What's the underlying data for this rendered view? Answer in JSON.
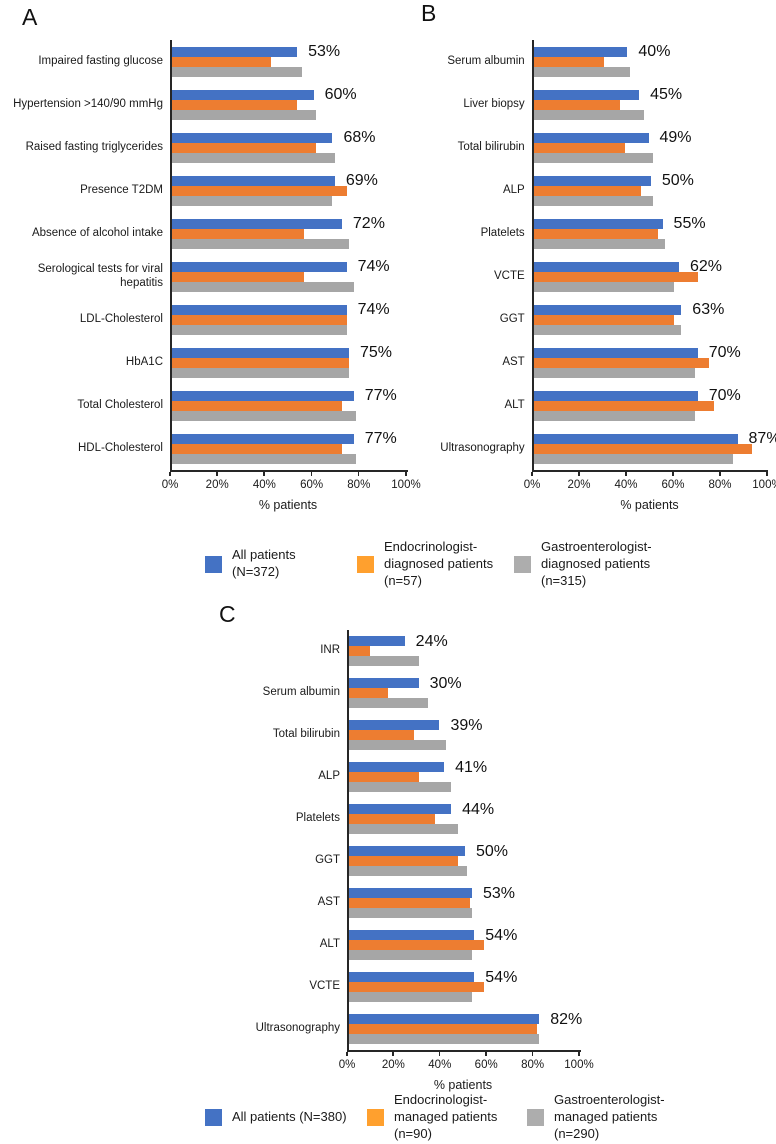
{
  "figure": {
    "background": "#ffffff"
  },
  "colors": {
    "blue": "#4472C4",
    "orange": "#ED7D31",
    "gray": "#A6A6A6",
    "legend_orange": "#FFA02E",
    "legend_gray": "#ADADAD",
    "axis": "#262626"
  },
  "chart_data": [
    {
      "letter": "A",
      "type": "bar",
      "orientation": "horizontal",
      "xlabel": "% patients",
      "ticks": [
        "0%",
        "20%",
        "40%",
        "60%",
        "80%",
        "100%"
      ],
      "tick_values": [
        0,
        20,
        40,
        60,
        80,
        100
      ],
      "xlim": [
        0,
        100
      ],
      "categories": [
        "Impaired fasting glucose",
        "Hypertension >140/90 mmHg",
        "Raised fasting triglycerides",
        "Presence T2DM",
        "Absence of alcohol intake",
        "Serological tests for viral hepatitis",
        "LDL-Cholesterol",
        "HbA1C",
        "Total Cholesterol",
        "HDL-Cholesterol"
      ],
      "value_labels": [
        "53%",
        "60%",
        "68%",
        "69%",
        "72%",
        "74%",
        "74%",
        "75%",
        "77%",
        "77%"
      ],
      "series": [
        {
          "name": "All patients (N=372)",
          "color": "#4472C4",
          "values": [
            53,
            60,
            68,
            69,
            72,
            74,
            74,
            75,
            77,
            77
          ]
        },
        {
          "name": "Endocrinologist-diagnosed patients (n=57)",
          "color": "#ED7D31",
          "values": [
            42,
            53,
            61,
            74,
            56,
            56,
            74,
            75,
            72,
            72
          ]
        },
        {
          "name": "Gastroenterologist-diagnosed patients (n=315)",
          "color": "#A6A6A6",
          "values": [
            55,
            61,
            69,
            68,
            75,
            77,
            74,
            75,
            78,
            78
          ]
        }
      ]
    },
    {
      "letter": "B",
      "type": "bar",
      "orientation": "horizontal",
      "xlabel": "% patients",
      "ticks": [
        "0%",
        "20%",
        "40%",
        "60%",
        "80%",
        "100%"
      ],
      "tick_values": [
        0,
        20,
        40,
        60,
        80,
        100
      ],
      "xlim": [
        0,
        100
      ],
      "categories": [
        "Serum albumin",
        "Liver biopsy",
        "Total bilirubin",
        "ALP",
        "Platelets",
        "VCTE",
        "GGT",
        "AST",
        "ALT",
        "Ultrasonography"
      ],
      "value_labels": [
        "40%",
        "45%",
        "49%",
        "50%",
        "55%",
        "62%",
        "63%",
        "70%",
        "70%",
        "87%"
      ],
      "series": [
        {
          "name": "All patients (N=372)",
          "color": "#4472C4",
          "values": [
            40,
            45,
            49,
            50,
            55,
            62,
            63,
            70,
            70,
            87
          ]
        },
        {
          "name": "Endocrinologist-diagnosed patients (n=57)",
          "color": "#ED7D31",
          "values": [
            30,
            37,
            39,
            46,
            53,
            70,
            60,
            75,
            77,
            93
          ]
        },
        {
          "name": "Gastroenterologist-diagnosed patients (n=315)",
          "color": "#A6A6A6",
          "values": [
            41,
            47,
            51,
            51,
            56,
            60,
            63,
            69,
            69,
            85
          ]
        }
      ]
    },
    {
      "letter": "C",
      "type": "bar",
      "orientation": "horizontal",
      "xlabel": "% patients",
      "ticks": [
        "0%",
        "20%",
        "40%",
        "60%",
        "80%",
        "100%"
      ],
      "tick_values": [
        0,
        20,
        40,
        60,
        80,
        100
      ],
      "xlim": [
        0,
        100
      ],
      "categories": [
        "INR",
        "Serum albumin",
        "Total bilirubin",
        "ALP",
        "Platelets",
        "GGT",
        "AST",
        "ALT",
        "VCTE",
        "Ultrasonography"
      ],
      "value_labels": [
        "24%",
        "30%",
        "39%",
        "41%",
        "44%",
        "50%",
        "53%",
        "54%",
        "54%",
        "82%"
      ],
      "series": [
        {
          "name": "All patients (N=380)",
          "color": "#4472C4",
          "values": [
            24,
            30,
            39,
            41,
            44,
            50,
            53,
            54,
            54,
            82
          ]
        },
        {
          "name": "Endocrinologist-managed patients (n=90)",
          "color": "#ED7D31",
          "values": [
            9,
            17,
            28,
            30,
            37,
            47,
            52,
            58,
            58,
            81
          ]
        },
        {
          "name": "Gastroenterologist-managed patients (n=290)",
          "color": "#A6A6A6",
          "values": [
            30,
            34,
            42,
            44,
            47,
            51,
            53,
            53,
            53,
            82
          ]
        }
      ]
    }
  ],
  "legends": [
    {
      "items": [
        {
          "label": "All patients (N=372)",
          "color": "#4472C4"
        },
        {
          "label": "Endocrinologist-\ndiagnosed patients\n(n=57)",
          "color": "#FFA02E"
        },
        {
          "label": "Gastroenterologist-\ndiagnosed patients\n(n=315)",
          "color": "#ADADAD"
        }
      ]
    },
    {
      "items": [
        {
          "label": "All patients (N=380)",
          "color": "#4472C4"
        },
        {
          "label": "Endocrinologist-\nmanaged patients\n(n=90)",
          "color": "#FFA02E"
        },
        {
          "label": "Gastroenterologist-\nmanaged patients\n(n=290)",
          "color": "#ADADAD"
        }
      ]
    }
  ]
}
